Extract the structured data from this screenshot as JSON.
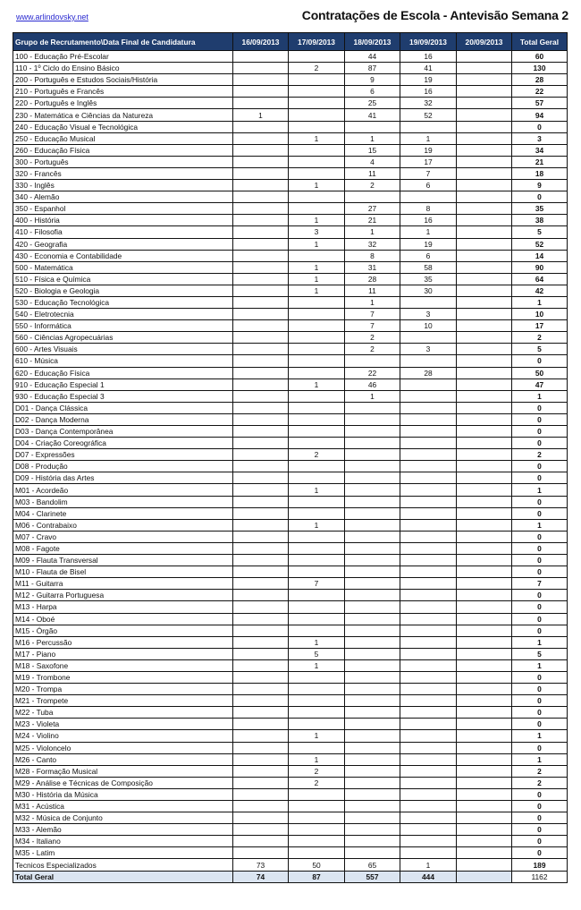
{
  "header": {
    "site": "www.arlindovsky.net",
    "title": "Contratações de Escola - Antevisão Semana 2"
  },
  "table": {
    "columns": [
      "Grupo de Recrutamento\\Data Final de Candidatura",
      "16/09/2013",
      "17/09/2013",
      "18/09/2013",
      "19/09/2013",
      "20/09/2013",
      "Total Geral"
    ],
    "rows": [
      [
        "100 - Educação Pré-Escolar",
        "",
        "",
        "44",
        "16",
        "",
        "60"
      ],
      [
        "110 - 1º Ciclo do Ensino Básico",
        "",
        "2",
        "87",
        "41",
        "",
        "130"
      ],
      [
        "200 - Português e Estudos Sociais/História",
        "",
        "",
        "9",
        "19",
        "",
        "28"
      ],
      [
        "210 - Português e Francês",
        "",
        "",
        "6",
        "16",
        "",
        "22"
      ],
      [
        "220 - Português e Inglês",
        "",
        "",
        "25",
        "32",
        "",
        "57"
      ],
      [
        "230 - Matemática e Ciências da Natureza",
        "1",
        "",
        "41",
        "52",
        "",
        "94"
      ],
      [
        "240 - Educação Visual e Tecnológica",
        "",
        "",
        "",
        "",
        "",
        "0"
      ],
      [
        "250 - Educação Musical",
        "",
        "1",
        "1",
        "1",
        "",
        "3"
      ],
      [
        "260 - Educação Física",
        "",
        "",
        "15",
        "19",
        "",
        "34"
      ],
      [
        "300 - Português",
        "",
        "",
        "4",
        "17",
        "",
        "21"
      ],
      [
        "320 - Francês",
        "",
        "",
        "11",
        "7",
        "",
        "18"
      ],
      [
        "330 - Inglês",
        "",
        "1",
        "2",
        "6",
        "",
        "9"
      ],
      [
        "340 - Alemão",
        "",
        "",
        "",
        "",
        "",
        "0"
      ],
      [
        "350 - Espanhol",
        "",
        "",
        "27",
        "8",
        "",
        "35"
      ],
      [
        "400 - História",
        "",
        "1",
        "21",
        "16",
        "",
        "38"
      ],
      [
        "410 - Filosofia",
        "",
        "3",
        "1",
        "1",
        "",
        "5"
      ],
      [
        "420 - Geografia",
        "",
        "1",
        "32",
        "19",
        "",
        "52"
      ],
      [
        "430 - Economia e Contabilidade",
        "",
        "",
        "8",
        "6",
        "",
        "14"
      ],
      [
        "500 - Matemática",
        "",
        "1",
        "31",
        "58",
        "",
        "90"
      ],
      [
        "510 - Física e Química",
        "",
        "1",
        "28",
        "35",
        "",
        "64"
      ],
      [
        "520 - Biologia e Geologia",
        "",
        "1",
        "11",
        "30",
        "",
        "42"
      ],
      [
        "530 - Educação Tecnológica",
        "",
        "",
        "1",
        "",
        "",
        "1"
      ],
      [
        "540 - Eletrotecnia",
        "",
        "",
        "7",
        "3",
        "",
        "10"
      ],
      [
        "550 - Informática",
        "",
        "",
        "7",
        "10",
        "",
        "17"
      ],
      [
        "560 - Ciências Agropecuárias",
        "",
        "",
        "2",
        "",
        "",
        "2"
      ],
      [
        "600 - Artes Visuais",
        "",
        "",
        "2",
        "3",
        "",
        "5"
      ],
      [
        "610 - Música",
        "",
        "",
        "",
        "",
        "",
        "0"
      ],
      [
        "620 - Educação Física",
        "",
        "",
        "22",
        "28",
        "",
        "50"
      ],
      [
        "910 - Educação Especial 1",
        "",
        "1",
        "46",
        "",
        "",
        "47"
      ],
      [
        "930 - Educação Especial 3",
        "",
        "",
        "1",
        "",
        "",
        "1"
      ],
      [
        "D01 - Dança Clássica",
        "",
        "",
        "",
        "",
        "",
        "0"
      ],
      [
        "D02 - Dança Moderna",
        "",
        "",
        "",
        "",
        "",
        "0"
      ],
      [
        "D03 - Dança Contemporânea",
        "",
        "",
        "",
        "",
        "",
        "0"
      ],
      [
        "D04 - Criação Coreográfica",
        "",
        "",
        "",
        "",
        "",
        "0"
      ],
      [
        "D07 - Expressões",
        "",
        "2",
        "",
        "",
        "",
        "2"
      ],
      [
        "D08 - Produção",
        "",
        "",
        "",
        "",
        "",
        "0"
      ],
      [
        "D09 - História das Artes",
        "",
        "",
        "",
        "",
        "",
        "0"
      ],
      [
        "M01 - Acordeão",
        "",
        "1",
        "",
        "",
        "",
        "1"
      ],
      [
        "M03 - Bandolim",
        "",
        "",
        "",
        "",
        "",
        "0"
      ],
      [
        "M04 - Clarinete",
        "",
        "",
        "",
        "",
        "",
        "0"
      ],
      [
        "M06 - Contrabaixo",
        "",
        "1",
        "",
        "",
        "",
        "1"
      ],
      [
        "M07 - Cravo",
        "",
        "",
        "",
        "",
        "",
        "0"
      ],
      [
        "M08 - Fagote",
        "",
        "",
        "",
        "",
        "",
        "0"
      ],
      [
        "M09 - Flauta Transversal",
        "",
        "",
        "",
        "",
        "",
        "0"
      ],
      [
        "M10 - Flauta de Bisel",
        "",
        "",
        "",
        "",
        "",
        "0"
      ],
      [
        "M11 - Guitarra",
        "",
        "7",
        "",
        "",
        "",
        "7"
      ],
      [
        "M12 - Guitarra Portuguesa",
        "",
        "",
        "",
        "",
        "",
        "0"
      ],
      [
        "M13 - Harpa",
        "",
        "",
        "",
        "",
        "",
        "0"
      ],
      [
        "M14 - Oboé",
        "",
        "",
        "",
        "",
        "",
        "0"
      ],
      [
        "M15 - Órgão",
        "",
        "",
        "",
        "",
        "",
        "0"
      ],
      [
        "M16 - Percussão",
        "",
        "1",
        "",
        "",
        "",
        "1"
      ],
      [
        "M17 - Piano",
        "",
        "5",
        "",
        "",
        "",
        "5"
      ],
      [
        "M18 - Saxofone",
        "",
        "1",
        "",
        "",
        "",
        "1"
      ],
      [
        "M19 - Trombone",
        "",
        "",
        "",
        "",
        "",
        "0"
      ],
      [
        "M20 - Trompa",
        "",
        "",
        "",
        "",
        "",
        "0"
      ],
      [
        "M21 - Trompete",
        "",
        "",
        "",
        "",
        "",
        "0"
      ],
      [
        "M22 - Tuba",
        "",
        "",
        "",
        "",
        "",
        "0"
      ],
      [
        "M23 - Violeta",
        "",
        "",
        "",
        "",
        "",
        "0"
      ],
      [
        "M24 - Violino",
        "",
        "1",
        "",
        "",
        "",
        "1"
      ],
      [
        "M25 - Violoncelo",
        "",
        "",
        "",
        "",
        "",
        "0"
      ],
      [
        "M26 - Canto",
        "",
        "1",
        "",
        "",
        "",
        "1"
      ],
      [
        "M28 - Formação Musical",
        "",
        "2",
        "",
        "",
        "",
        "2"
      ],
      [
        "M29 - Análise e Técnicas de Composição",
        "",
        "2",
        "",
        "",
        "",
        "2"
      ],
      [
        "M30 - História da Música",
        "",
        "",
        "",
        "",
        "",
        "0"
      ],
      [
        "M31 - Acústica",
        "",
        "",
        "",
        "",
        "",
        "0"
      ],
      [
        "M32 - Música de Conjunto",
        "",
        "",
        "",
        "",
        "",
        "0"
      ],
      [
        "M33 - Alemão",
        "",
        "",
        "",
        "",
        "",
        "0"
      ],
      [
        "M34 - Italiano",
        "",
        "",
        "",
        "",
        "",
        "0"
      ],
      [
        "M35 - Latim",
        "",
        "",
        "",
        "",
        "",
        "0"
      ],
      [
        "Tecnicos Especializados",
        "73",
        "50",
        "65",
        "1",
        "",
        "189"
      ]
    ],
    "grand_total": [
      "Total Geral",
      "74",
      "87",
      "557",
      "444",
      "",
      "1162"
    ]
  },
  "colors": {
    "header_bg": "#1f3d6e",
    "total_row_bg": "#dbe5f1"
  }
}
